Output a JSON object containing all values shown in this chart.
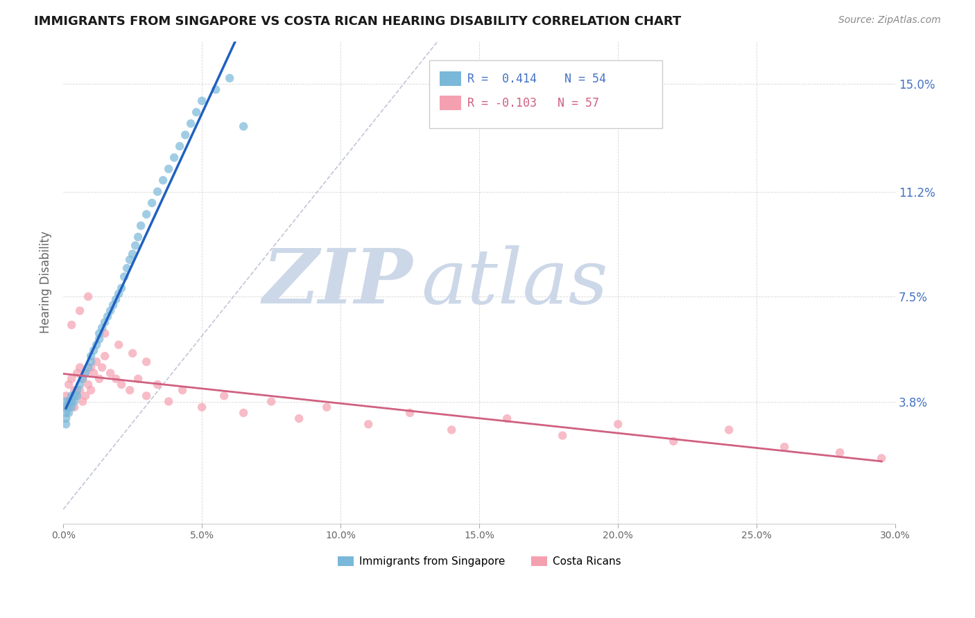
{
  "title": "IMMIGRANTS FROM SINGAPORE VS COSTA RICAN HEARING DISABILITY CORRELATION CHART",
  "source": "Source: ZipAtlas.com",
  "ylabel": "Hearing Disability",
  "yticks": [
    0.038,
    0.075,
    0.112,
    0.15
  ],
  "ytick_labels": [
    "3.8%",
    "7.5%",
    "11.2%",
    "15.0%"
  ],
  "xlim": [
    0.0,
    0.3
  ],
  "ylim": [
    -0.005,
    0.165
  ],
  "legend1_label": "Immigrants from Singapore",
  "legend2_label": "Costa Ricans",
  "R1": 0.414,
  "N1": 54,
  "R2": -0.103,
  "N2": 57,
  "color_blue": "#7ab8d9",
  "color_pink": "#f5a0b0",
  "color_blue_line": "#2060c0",
  "color_pink_line": "#d06080",
  "color_gray_dash": "#b0b8cc",
  "watermark_color": "#ccd8e8",
  "background_color": "#ffffff",
  "sg_x": [
    0.001,
    0.001,
    0.001,
    0.001,
    0.001,
    0.002,
    0.002,
    0.002,
    0.003,
    0.003,
    0.003,
    0.004,
    0.004,
    0.005,
    0.005,
    0.006,
    0.007,
    0.008,
    0.009,
    0.01,
    0.01,
    0.011,
    0.012,
    0.013,
    0.013,
    0.014,
    0.015,
    0.016,
    0.017,
    0.018,
    0.019,
    0.02,
    0.021,
    0.022,
    0.023,
    0.024,
    0.025,
    0.026,
    0.027,
    0.028,
    0.03,
    0.032,
    0.034,
    0.036,
    0.038,
    0.04,
    0.042,
    0.044,
    0.046,
    0.048,
    0.05,
    0.055,
    0.06,
    0.065
  ],
  "sg_y": [
    0.038,
    0.036,
    0.034,
    0.032,
    0.03,
    0.038,
    0.036,
    0.034,
    0.04,
    0.038,
    0.036,
    0.04,
    0.038,
    0.042,
    0.04,
    0.044,
    0.046,
    0.048,
    0.05,
    0.052,
    0.054,
    0.056,
    0.058,
    0.06,
    0.062,
    0.064,
    0.066,
    0.068,
    0.07,
    0.072,
    0.074,
    0.076,
    0.078,
    0.082,
    0.085,
    0.088,
    0.09,
    0.093,
    0.096,
    0.1,
    0.104,
    0.108,
    0.112,
    0.116,
    0.12,
    0.124,
    0.128,
    0.132,
    0.136,
    0.14,
    0.144,
    0.148,
    0.152,
    0.135
  ],
  "cr_x": [
    0.001,
    0.001,
    0.002,
    0.002,
    0.003,
    0.003,
    0.004,
    0.004,
    0.005,
    0.005,
    0.006,
    0.006,
    0.007,
    0.007,
    0.008,
    0.008,
    0.009,
    0.01,
    0.01,
    0.011,
    0.012,
    0.013,
    0.014,
    0.015,
    0.017,
    0.019,
    0.021,
    0.024,
    0.027,
    0.03,
    0.034,
    0.038,
    0.043,
    0.05,
    0.058,
    0.065,
    0.075,
    0.085,
    0.095,
    0.11,
    0.125,
    0.14,
    0.16,
    0.18,
    0.2,
    0.22,
    0.24,
    0.26,
    0.28,
    0.295,
    0.003,
    0.006,
    0.009,
    0.015,
    0.02,
    0.025,
    0.03
  ],
  "cr_y": [
    0.04,
    0.036,
    0.044,
    0.038,
    0.046,
    0.038,
    0.042,
    0.036,
    0.048,
    0.04,
    0.05,
    0.042,
    0.046,
    0.038,
    0.048,
    0.04,
    0.044,
    0.05,
    0.042,
    0.048,
    0.052,
    0.046,
    0.05,
    0.054,
    0.048,
    0.046,
    0.044,
    0.042,
    0.046,
    0.04,
    0.044,
    0.038,
    0.042,
    0.036,
    0.04,
    0.034,
    0.038,
    0.032,
    0.036,
    0.03,
    0.034,
    0.028,
    0.032,
    0.026,
    0.03,
    0.024,
    0.028,
    0.022,
    0.02,
    0.018,
    0.065,
    0.07,
    0.075,
    0.062,
    0.058,
    0.055,
    0.052
  ]
}
